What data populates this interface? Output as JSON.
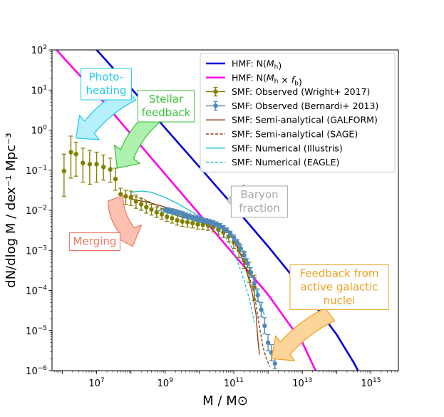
{
  "chart_data": {
    "type": "line",
    "xscale": "log",
    "yscale": "log",
    "xlim_log10": [
      5.7,
      15.8
    ],
    "ylim_log10": [
      -6,
      2
    ],
    "xlabel": "M / M⊙",
    "ylabel": "dN/dlog M / dex⁻¹ Mpc⁻³",
    "xticks": [
      {
        "value": 7,
        "label": "10",
        "exp": "7"
      },
      {
        "value": 9,
        "label": "10",
        "exp": "9"
      },
      {
        "value": 11,
        "label": "10",
        "exp": "11"
      },
      {
        "value": 13,
        "label": "10",
        "exp": "13"
      },
      {
        "value": 15,
        "label": "10",
        "exp": "15"
      }
    ],
    "yticks": [
      {
        "value": 2,
        "label": "10",
        "exp": "2"
      },
      {
        "value": 1,
        "label": "10",
        "exp": "1"
      },
      {
        "value": 0,
        "label": "10",
        "exp": "0"
      },
      {
        "value": -1,
        "label": "10",
        "exp": "−1"
      },
      {
        "value": -2,
        "label": "10",
        "exp": "−2"
      },
      {
        "value": -3,
        "label": "10",
        "exp": "−3"
      },
      {
        "value": -4,
        "label": "10",
        "exp": "−4"
      },
      {
        "value": -5,
        "label": "10",
        "exp": "−5"
      },
      {
        "value": -6,
        "label": "10",
        "exp": "−6"
      }
    ],
    "legend": {
      "location": "upper-right",
      "entries": [
        {
          "id": "hmf",
          "label": "HMF: N(M_h)"
        },
        {
          "id": "hmf_fb",
          "label": "HMF: N(M_h × f_b)"
        },
        {
          "id": "wright",
          "label": "SMF: Observed (Wright+ 2017)"
        },
        {
          "id": "bernardi",
          "label": "SMF: Observed (Bernardi+ 2013)"
        },
        {
          "id": "galform",
          "label": "SMF: Semi-analytical (GALFORM)"
        },
        {
          "id": "sage",
          "label": "SMF: Semi-analytical (SAGE)"
        },
        {
          "id": "illustris",
          "label": "SMF: Numerical (Illustris)"
        },
        {
          "id": "eagle",
          "label": "SMF: Numerical (EAGLE)"
        }
      ]
    },
    "series": [
      {
        "id": "hmf",
        "name": "HMF: N(M_h)",
        "color": "#0000dd",
        "style": "solid",
        "width": 2.6,
        "points": [
          [
            5.0,
            3.0
          ],
          [
            6.0,
            2.62
          ],
          [
            7.0,
            2.0
          ],
          [
            8.0,
            1.05
          ],
          [
            9.0,
            0.05
          ],
          [
            10.0,
            -0.92
          ],
          [
            11.0,
            -1.9
          ],
          [
            12.0,
            -2.9
          ],
          [
            13.0,
            -3.95
          ],
          [
            14.0,
            -5.1
          ],
          [
            14.5,
            -5.8
          ],
          [
            15.0,
            -6.6
          ]
        ]
      },
      {
        "id": "hmf_fb",
        "name": "HMF: N(M_h × f_b)",
        "color": "#ff00ee",
        "style": "solid",
        "width": 2.6,
        "points": [
          [
            5.0,
            2.8
          ],
          [
            6.0,
            1.84
          ],
          [
            7.0,
            0.9
          ],
          [
            8.0,
            -0.1
          ],
          [
            9.0,
            -1.1
          ],
          [
            10.0,
            -2.1
          ],
          [
            11.0,
            -3.1
          ],
          [
            12.0,
            -4.1
          ],
          [
            12.5,
            -4.7
          ],
          [
            13.0,
            -5.3
          ],
          [
            13.5,
            -6.2
          ]
        ]
      },
      {
        "id": "galform",
        "name": "SMF: Semi-analytical (GALFORM)",
        "color": "#8b3a0e",
        "style": "solid",
        "width": 1.3,
        "points": [
          [
            8.0,
            -1.72
          ],
          [
            8.5,
            -1.8
          ],
          [
            9.0,
            -1.92
          ],
          [
            9.5,
            -2.1
          ],
          [
            10.0,
            -2.22
          ],
          [
            10.5,
            -2.35
          ],
          [
            10.8,
            -2.5
          ],
          [
            11.0,
            -2.75
          ],
          [
            11.2,
            -3.1
          ],
          [
            11.4,
            -3.6
          ],
          [
            11.55,
            -4.1
          ],
          [
            11.65,
            -4.6
          ],
          [
            11.7,
            -5.2
          ],
          [
            11.75,
            -5.6
          ]
        ]
      },
      {
        "id": "sage",
        "name": "SMF: Semi-analytical (SAGE)",
        "color": "#8b3a0e",
        "style": "dashed",
        "width": 1.3,
        "points": [
          [
            8.0,
            -1.62
          ],
          [
            8.3,
            -1.7
          ],
          [
            8.6,
            -1.82
          ],
          [
            9.0,
            -2.0
          ],
          [
            9.5,
            -2.18
          ],
          [
            10.0,
            -2.3
          ],
          [
            10.5,
            -2.4
          ],
          [
            10.8,
            -2.52
          ],
          [
            11.0,
            -2.72
          ],
          [
            11.2,
            -3.05
          ],
          [
            11.4,
            -3.5
          ],
          [
            11.6,
            -4.1
          ],
          [
            11.75,
            -4.9
          ],
          [
            11.85,
            -5.4
          ],
          [
            11.95,
            -5.7
          ],
          [
            12.05,
            -5.9
          ]
        ]
      },
      {
        "id": "illustris",
        "name": "SMF: Numerical (Illustris)",
        "color": "#17becf",
        "style": "solid",
        "width": 1.3,
        "points": [
          [
            8.0,
            -1.55
          ],
          [
            8.3,
            -1.52
          ],
          [
            8.6,
            -1.55
          ],
          [
            9.0,
            -1.68
          ],
          [
            9.4,
            -1.85
          ],
          [
            9.8,
            -2.05
          ],
          [
            10.2,
            -2.25
          ],
          [
            10.6,
            -2.4
          ],
          [
            10.9,
            -2.55
          ],
          [
            11.1,
            -2.75
          ],
          [
            11.3,
            -3.05
          ],
          [
            11.45,
            -3.4
          ],
          [
            11.6,
            -3.8
          ],
          [
            11.7,
            -4.2
          ],
          [
            11.8,
            -4.45
          ],
          [
            11.9,
            -4.6
          ]
        ]
      },
      {
        "id": "eagle",
        "name": "SMF: Numerical (EAGLE)",
        "color": "#17becf",
        "style": "dashed",
        "width": 1.3,
        "points": [
          [
            8.8,
            -2.0
          ],
          [
            9.0,
            -2.05
          ],
          [
            9.4,
            -2.15
          ],
          [
            9.8,
            -2.25
          ],
          [
            10.2,
            -2.35
          ],
          [
            10.5,
            -2.45
          ],
          [
            10.7,
            -2.6
          ],
          [
            10.9,
            -2.85
          ],
          [
            11.1,
            -3.25
          ],
          [
            11.3,
            -3.75
          ],
          [
            11.45,
            -4.2
          ],
          [
            11.55,
            -4.6
          ],
          [
            11.6,
            -4.8
          ]
        ]
      }
    ],
    "errorbar_series": [
      {
        "id": "wright",
        "name": "SMF: Observed (Wright+ 2017)",
        "color": "#808000",
        "points": [
          {
            "x": 6.05,
            "y": -1.02,
            "lo": -1.65,
            "hi": -0.6
          },
          {
            "x": 6.25,
            "y": -0.55,
            "lo": -1.2,
            "hi": -0.15
          },
          {
            "x": 6.4,
            "y": -0.6,
            "lo": -1.15,
            "hi": -0.3
          },
          {
            "x": 6.6,
            "y": -0.82,
            "lo": -1.3,
            "hi": -0.45
          },
          {
            "x": 6.8,
            "y": -0.85,
            "lo": -1.35,
            "hi": -0.5
          },
          {
            "x": 7.0,
            "y": -0.85,
            "lo": -1.3,
            "hi": -0.55
          },
          {
            "x": 7.2,
            "y": -0.92,
            "lo": -1.25,
            "hi": -0.62
          },
          {
            "x": 7.4,
            "y": -0.98,
            "lo": -1.3,
            "hi": -0.7
          },
          {
            "x": 7.55,
            "y": -1.22,
            "lo": -1.5,
            "hi": -0.95
          },
          {
            "x": 7.7,
            "y": -1.6,
            "lo": -1.8,
            "hi": -1.45
          },
          {
            "x": 7.85,
            "y": -1.65,
            "lo": -1.85,
            "hi": -1.5
          },
          {
            "x": 8.0,
            "y": -1.68,
            "lo": -1.88,
            "hi": -1.52
          },
          {
            "x": 8.15,
            "y": -1.78,
            "lo": -1.95,
            "hi": -1.62
          },
          {
            "x": 8.3,
            "y": -1.85,
            "lo": -2.0,
            "hi": -1.7
          },
          {
            "x": 8.45,
            "y": -1.92,
            "lo": -2.07,
            "hi": -1.78
          },
          {
            "x": 8.6,
            "y": -1.98,
            "lo": -2.12,
            "hi": -1.85
          },
          {
            "x": 8.75,
            "y": -2.05,
            "lo": -2.18,
            "hi": -1.92
          },
          {
            "x": 8.9,
            "y": -2.1,
            "lo": -2.22,
            "hi": -1.97
          },
          {
            "x": 9.05,
            "y": -2.16,
            "lo": -2.28,
            "hi": -2.04
          },
          {
            "x": 9.2,
            "y": -2.2,
            "lo": -2.32,
            "hi": -2.08
          },
          {
            "x": 9.35,
            "y": -2.25,
            "lo": -2.37,
            "hi": -2.13
          },
          {
            "x": 9.5,
            "y": -2.28,
            "lo": -2.4,
            "hi": -2.16
          },
          {
            "x": 9.65,
            "y": -2.3,
            "lo": -2.42,
            "hi": -2.18
          },
          {
            "x": 9.8,
            "y": -2.32,
            "lo": -2.44,
            "hi": -2.2
          },
          {
            "x": 9.95,
            "y": -2.35,
            "lo": -2.47,
            "hi": -2.23
          },
          {
            "x": 10.1,
            "y": -2.36,
            "lo": -2.48,
            "hi": -2.24
          },
          {
            "x": 10.25,
            "y": -2.38,
            "lo": -2.5,
            "hi": -2.26
          },
          {
            "x": 10.4,
            "y": -2.42,
            "lo": -2.54,
            "hi": -2.3
          },
          {
            "x": 10.55,
            "y": -2.48,
            "lo": -2.6,
            "hi": -2.36
          },
          {
            "x": 10.7,
            "y": -2.55,
            "lo": -2.68,
            "hi": -2.42
          },
          {
            "x": 10.85,
            "y": -2.65,
            "lo": -2.78,
            "hi": -2.52
          },
          {
            "x": 11.0,
            "y": -2.8,
            "lo": -2.95,
            "hi": -2.65
          },
          {
            "x": 11.15,
            "y": -3.0,
            "lo": -3.18,
            "hi": -2.83
          },
          {
            "x": 11.3,
            "y": -3.25,
            "lo": -3.45,
            "hi": -3.05
          },
          {
            "x": 11.45,
            "y": -3.55,
            "lo": -3.8,
            "hi": -3.3
          },
          {
            "x": 11.6,
            "y": -3.92,
            "lo": -4.25,
            "hi": -3.62
          }
        ]
      },
      {
        "id": "bernardi",
        "name": "SMF: Observed (Bernardi+ 2013)",
        "color": "#4f87b8",
        "points": [
          {
            "x": 9.0,
            "y": -1.98,
            "lo": -2.05,
            "hi": -1.92
          },
          {
            "x": 9.1,
            "y": -2.0,
            "lo": -2.06,
            "hi": -1.94
          },
          {
            "x": 9.2,
            "y": -2.02,
            "lo": -2.08,
            "hi": -1.96
          },
          {
            "x": 9.3,
            "y": -2.04,
            "lo": -2.1,
            "hi": -1.98
          },
          {
            "x": 9.4,
            "y": -2.06,
            "lo": -2.12,
            "hi": -2.0
          },
          {
            "x": 9.5,
            "y": -2.09,
            "lo": -2.15,
            "hi": -2.03
          },
          {
            "x": 9.6,
            "y": -2.12,
            "lo": -2.18,
            "hi": -2.06
          },
          {
            "x": 9.7,
            "y": -2.15,
            "lo": -2.21,
            "hi": -2.09
          },
          {
            "x": 9.8,
            "y": -2.18,
            "lo": -2.24,
            "hi": -2.12
          },
          {
            "x": 9.9,
            "y": -2.2,
            "lo": -2.26,
            "hi": -2.14
          },
          {
            "x": 10.0,
            "y": -2.22,
            "lo": -2.28,
            "hi": -2.16
          },
          {
            "x": 10.1,
            "y": -2.25,
            "lo": -2.31,
            "hi": -2.19
          },
          {
            "x": 10.2,
            "y": -2.27,
            "lo": -2.33,
            "hi": -2.21
          },
          {
            "x": 10.3,
            "y": -2.29,
            "lo": -2.35,
            "hi": -2.23
          },
          {
            "x": 10.4,
            "y": -2.32,
            "lo": -2.38,
            "hi": -2.26
          },
          {
            "x": 10.5,
            "y": -2.35,
            "lo": -2.41,
            "hi": -2.29
          },
          {
            "x": 10.6,
            "y": -2.39,
            "lo": -2.45,
            "hi": -2.33
          },
          {
            "x": 10.7,
            "y": -2.44,
            "lo": -2.5,
            "hi": -2.38
          },
          {
            "x": 10.8,
            "y": -2.5,
            "lo": -2.56,
            "hi": -2.44
          },
          {
            "x": 10.9,
            "y": -2.58,
            "lo": -2.64,
            "hi": -2.52
          },
          {
            "x": 11.0,
            "y": -2.68,
            "lo": -2.75,
            "hi": -2.61
          },
          {
            "x": 11.1,
            "y": -2.8,
            "lo": -2.88,
            "hi": -2.72
          },
          {
            "x": 11.2,
            "y": -2.95,
            "lo": -3.04,
            "hi": -2.86
          },
          {
            "x": 11.3,
            "y": -3.12,
            "lo": -3.22,
            "hi": -3.02
          },
          {
            "x": 11.4,
            "y": -3.32,
            "lo": -3.43,
            "hi": -3.21
          },
          {
            "x": 11.5,
            "y": -3.55,
            "lo": -3.67,
            "hi": -3.43
          },
          {
            "x": 11.6,
            "y": -3.82,
            "lo": -3.96,
            "hi": -3.68
          },
          {
            "x": 11.7,
            "y": -4.12,
            "lo": -4.28,
            "hi": -3.96
          },
          {
            "x": 11.8,
            "y": -4.48,
            "lo": -4.66,
            "hi": -4.3
          },
          {
            "x": 11.9,
            "y": -4.88,
            "lo": -5.08,
            "hi": -4.68
          },
          {
            "x": 12.0,
            "y": -5.3,
            "lo": -5.5,
            "hi": -5.1
          },
          {
            "x": 12.1,
            "y": -5.55,
            "lo": -5.75,
            "hi": -5.35
          },
          {
            "x": 12.2,
            "y": -5.82,
            "lo": -5.95,
            "hi": -5.7
          }
        ]
      }
    ],
    "annotations": [
      {
        "id": "photoheating",
        "lines": [
          "Photo-",
          "heating"
        ],
        "color": "#1ec8f0",
        "fill": "#b6f0fb",
        "box_fill": "#ffffff",
        "arrow_from": [
          8.0,
          0.9
        ],
        "arrow_to": [
          6.4,
          -0.2
        ]
      },
      {
        "id": "stellar",
        "lines": [
          "Stellar",
          "feedback"
        ],
        "color": "#36c236",
        "fill": "#aef0ae",
        "box_fill": "#ffffff",
        "arrow_from": [
          8.65,
          0.3
        ],
        "arrow_to": [
          7.6,
          -0.95
        ]
      },
      {
        "id": "merging",
        "lines": [
          "Merging"
        ],
        "color": "#f07860",
        "fill": "#fbc0b0",
        "box_fill": "#ffffff",
        "arrow_from": [
          7.55,
          -1.7
        ],
        "arrow_to": [
          8.05,
          -2.9
        ]
      },
      {
        "id": "baryon",
        "lines": [
          "Baryon",
          "fraction"
        ],
        "color": "#a8a8a8",
        "fill": "#d8d8d8",
        "box_fill": "#ffffff",
        "arrow_from": [
          11.85,
          -1.75
        ],
        "arrow_to": [
          10.8,
          -1.75
        ]
      },
      {
        "id": "agn",
        "lines": [
          "Feedback from",
          "active galactic",
          "nuclei"
        ],
        "color": "#f0a020",
        "fill": "#fdd49a",
        "box_fill": "#ffffff",
        "arrow_from": [
          13.8,
          -4.6
        ],
        "arrow_to": [
          12.1,
          -5.7
        ]
      }
    ]
  }
}
